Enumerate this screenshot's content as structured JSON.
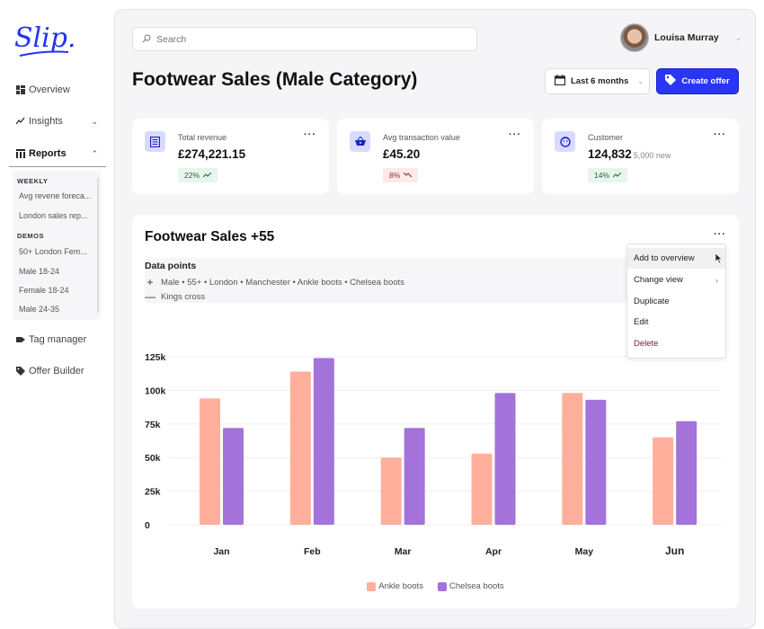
{
  "app": {
    "logo_text": "Slip."
  },
  "sidebar": {
    "items": [
      {
        "label": "Overview",
        "icon": "grid-icon"
      },
      {
        "label": "Insights",
        "icon": "trend-icon"
      },
      {
        "label": "Reports",
        "icon": "table-icon"
      },
      {
        "label": "Tag manager",
        "icon": "tag-icon"
      },
      {
        "label": "Offer Builder",
        "icon": "tags-icon"
      }
    ],
    "reports_sections": [
      {
        "heading": "WEEKLY",
        "items": [
          "Avg revene foreca...",
          "London sales rep..."
        ]
      },
      {
        "heading": "DEMOS",
        "items": [
          "50+ London Fem...",
          "Male 18-24",
          "Female 18-24",
          "Male 24-35"
        ]
      }
    ]
  },
  "header": {
    "search_placeholder": "Search",
    "user_name": "Louisa Murray",
    "page_title": "Footwear Sales (Male Category)",
    "date_range": "Last 6 months",
    "create_offer": "Create offer"
  },
  "stats": [
    {
      "label": "Total revenue",
      "value": "£274,221.15",
      "sub": "",
      "change": "22%",
      "direction": "up",
      "icon": "receipt-icon"
    },
    {
      "label": "Avg transaction value",
      "value": "£45.20",
      "sub": "",
      "change": "8%",
      "direction": "down",
      "icon": "basket-icon"
    },
    {
      "label": "Customer",
      "value": "124,832",
      "sub": "5,000 new",
      "change": "14%",
      "direction": "up",
      "icon": "smiley-icon"
    }
  ],
  "card": {
    "title": "Footwear Sales +55",
    "data_points_label": "Data points",
    "include": [
      "Male",
      "55+",
      "London",
      "Manchester",
      "Ankle boots",
      "Chelsea boots"
    ],
    "exclude": [
      "Kings cross"
    ],
    "more": "...",
    "menu": [
      {
        "label": "Add to overview",
        "active": true
      },
      {
        "label": "Change view",
        "submenu": true
      },
      {
        "label": "Duplicate"
      },
      {
        "label": "Edit"
      },
      {
        "label": "Delete",
        "danger": true
      }
    ]
  },
  "colors": {
    "accent": "#2a36f5",
    "ankle": "#ffaf9c",
    "chelsea": "#a373da"
  },
  "chart_data": {
    "type": "bar",
    "title": "Footwear Sales +55",
    "categories": [
      "Jan",
      "Feb",
      "Mar",
      "Apr",
      "May",
      "Jun"
    ],
    "series": [
      {
        "name": "Ankle boots",
        "values": [
          94000,
          114000,
          50000,
          53000,
          98000,
          65000
        ]
      },
      {
        "name": "Chelsea boots",
        "values": [
          72000,
          124000,
          72000,
          98000,
          93000,
          77000
        ]
      }
    ],
    "yticks": [
      "0",
      "25k",
      "50k",
      "75k",
      "100k",
      "125k"
    ],
    "ylim": [
      0,
      125000
    ],
    "grid": true,
    "legend": "bottom-center",
    "xlabel": "",
    "ylabel": ""
  }
}
